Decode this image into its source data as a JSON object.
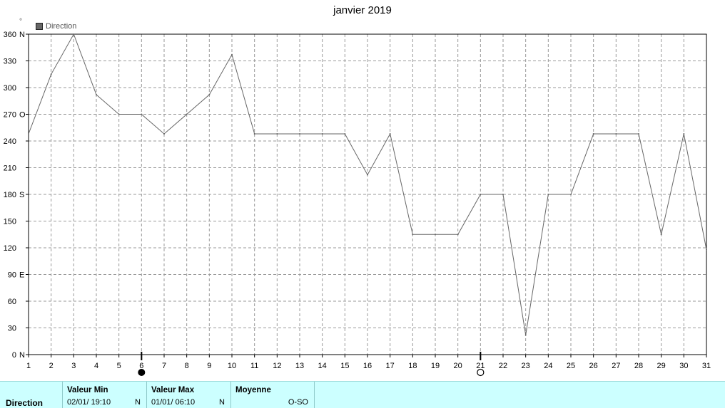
{
  "chart_data": {
    "type": "line",
    "title": "janvier 2019",
    "yunit": "°",
    "series": [
      {
        "name": "Direction",
        "color": "#666666",
        "x": [
          1,
          2,
          3,
          4,
          5,
          6,
          7,
          8,
          9,
          10,
          11,
          12,
          13,
          14,
          15,
          16,
          17,
          18,
          19,
          20,
          21,
          22,
          23,
          24,
          25,
          26,
          27,
          28,
          29,
          30,
          31
        ],
        "values": [
          248,
          315,
          360,
          292,
          270,
          270,
          248,
          270,
          292,
          337,
          248,
          248,
          248,
          248,
          248,
          202,
          248,
          135,
          135,
          135,
          180,
          180,
          22,
          180,
          180,
          248,
          248,
          248,
          135,
          248,
          118
        ]
      }
    ],
    "xlim": [
      1,
      31
    ],
    "ylim": [
      0,
      360
    ],
    "yticks": [
      {
        "value": 360,
        "label": "360",
        "dir": "N"
      },
      {
        "value": 330,
        "label": "330",
        "dir": ""
      },
      {
        "value": 300,
        "label": "300",
        "dir": ""
      },
      {
        "value": 270,
        "label": "270",
        "dir": "O"
      },
      {
        "value": 240,
        "label": "240",
        "dir": ""
      },
      {
        "value": 210,
        "label": "210",
        "dir": ""
      },
      {
        "value": 180,
        "label": "180",
        "dir": "S"
      },
      {
        "value": 150,
        "label": "150",
        "dir": ""
      },
      {
        "value": 120,
        "label": "120",
        "dir": ""
      },
      {
        "value": 90,
        "label": "90",
        "dir": "E"
      },
      {
        "value": 60,
        "label": "60",
        "dir": ""
      },
      {
        "value": 30,
        "label": "30",
        "dir": ""
      },
      {
        "value": 0,
        "label": "0",
        "dir": "N"
      }
    ],
    "xticks": [
      "1",
      "2",
      "3",
      "4",
      "5",
      "6",
      "7",
      "8",
      "9",
      "10",
      "11",
      "12",
      "13",
      "14",
      "15",
      "16",
      "17",
      "18",
      "19",
      "20",
      "21",
      "22",
      "23",
      "24",
      "25",
      "26",
      "27",
      "28",
      "29",
      "30",
      "31"
    ],
    "moon_phases": [
      {
        "day": 6,
        "phase": "new-moon"
      },
      {
        "day": 21,
        "phase": "full-moon"
      }
    ],
    "grid": true,
    "legend_position": "top-left"
  },
  "colors": {
    "line": "#666666",
    "grid": "#999999",
    "stats_background": "#ccffff"
  },
  "stats": {
    "label": "Direction",
    "min_header": "Valeur Min",
    "min_date": "02/01/  19:10",
    "min_value": "N",
    "max_header": "Valeur Max",
    "max_date": "01/01/  06:10",
    "max_value": "N",
    "avg_header": "Moyenne",
    "avg_value": "O-SO"
  }
}
